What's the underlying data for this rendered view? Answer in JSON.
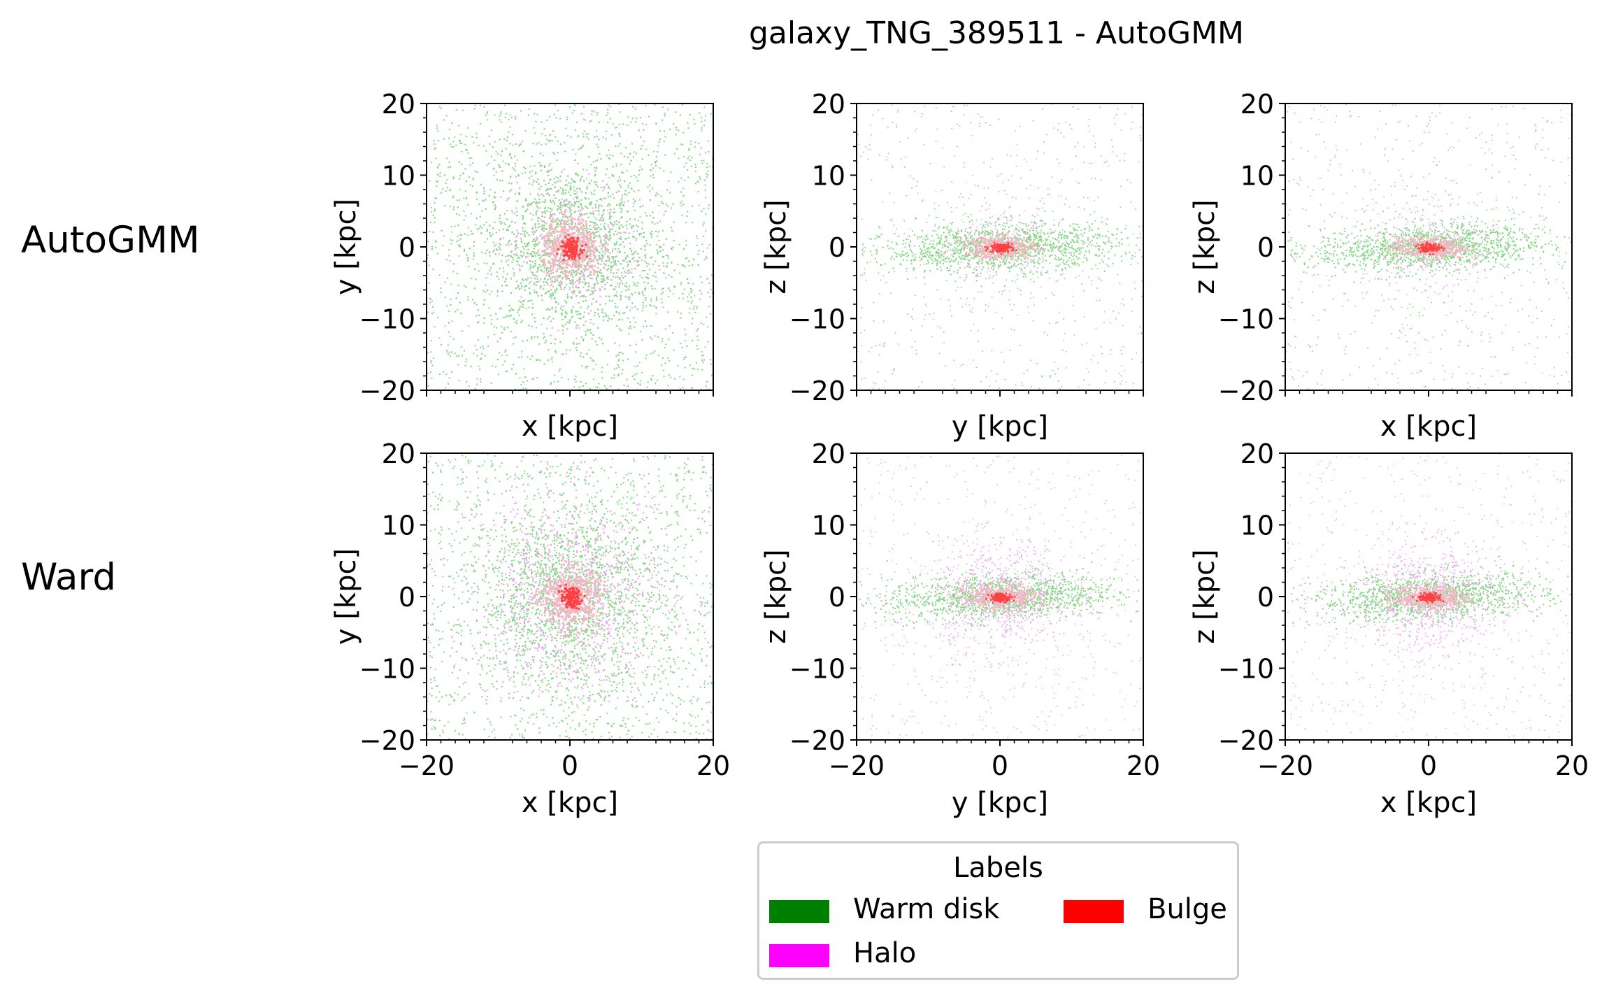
{
  "title": "galaxy_TNG_389511 - AutoGMM",
  "row_labels": [
    "AutoGMM",
    "Ward"
  ],
  "legend": {
    "title": "Labels",
    "items": [
      {
        "label": "Warm disk",
        "color": "#008000"
      },
      {
        "label": "Bulge",
        "color": "#ff0000"
      },
      {
        "label": "Halo",
        "color": "#ff00ff"
      }
    ]
  },
  "chart_data": [
    {
      "type": "scatter",
      "method": "AutoGMM",
      "projection": "x-y",
      "xlabel": "x [kpc]",
      "ylabel": "y [kpc]",
      "xlim": [
        -20,
        20
      ],
      "ylim": [
        -20,
        20
      ],
      "xticks": [
        "−20",
        "0",
        "20"
      ],
      "yticks": [
        "20",
        "10",
        "0",
        "−10",
        "−20"
      ],
      "show_xtick_labels": false,
      "series": [
        {
          "name": "Warm disk",
          "color": "#7fd87f"
        },
        {
          "name": "Halo",
          "color": "#f2a6f2"
        },
        {
          "name": "Bulge",
          "color": "#ff4040"
        }
      ]
    },
    {
      "type": "scatter",
      "method": "AutoGMM",
      "projection": "y-z",
      "xlabel": "y [kpc]",
      "ylabel": "z [kpc]",
      "xlim": [
        -20,
        20
      ],
      "ylim": [
        -20,
        20
      ],
      "xticks": [
        "−20",
        "0",
        "20"
      ],
      "yticks": [
        "20",
        "10",
        "0",
        "−10",
        "−20"
      ],
      "show_xtick_labels": false,
      "series": [
        {
          "name": "Warm disk",
          "color": "#7fd87f"
        },
        {
          "name": "Halo",
          "color": "#f2a6f2"
        },
        {
          "name": "Bulge",
          "color": "#ff4040"
        }
      ]
    },
    {
      "type": "scatter",
      "method": "AutoGMM",
      "projection": "x-z",
      "xlabel": "x [kpc]",
      "ylabel": "z [kpc]",
      "xlim": [
        -20,
        20
      ],
      "ylim": [
        -20,
        20
      ],
      "xticks": [
        "−20",
        "0",
        "20"
      ],
      "yticks": [
        "20",
        "10",
        "0",
        "−10",
        "−20"
      ],
      "show_xtick_labels": false,
      "series": [
        {
          "name": "Warm disk",
          "color": "#7fd87f"
        },
        {
          "name": "Halo",
          "color": "#f2a6f2"
        },
        {
          "name": "Bulge",
          "color": "#ff4040"
        }
      ]
    },
    {
      "type": "scatter",
      "method": "Ward",
      "projection": "x-y",
      "xlabel": "x [kpc]",
      "ylabel": "y [kpc]",
      "xlim": [
        -20,
        20
      ],
      "ylim": [
        -20,
        20
      ],
      "xticks": [
        "−20",
        "0",
        "20"
      ],
      "yticks": [
        "20",
        "10",
        "0",
        "−10",
        "−20"
      ],
      "show_xtick_labels": true,
      "series": [
        {
          "name": "Warm disk",
          "color": "#7fd87f"
        },
        {
          "name": "Halo",
          "color": "#f2a6f2"
        },
        {
          "name": "Bulge",
          "color": "#ff4040"
        }
      ]
    },
    {
      "type": "scatter",
      "method": "Ward",
      "projection": "y-z",
      "xlabel": "y [kpc]",
      "ylabel": "z [kpc]",
      "xlim": [
        -20,
        20
      ],
      "ylim": [
        -20,
        20
      ],
      "xticks": [
        "−20",
        "0",
        "20"
      ],
      "yticks": [
        "20",
        "10",
        "0",
        "−10",
        "−20"
      ],
      "show_xtick_labels": true,
      "series": [
        {
          "name": "Warm disk",
          "color": "#7fd87f"
        },
        {
          "name": "Halo",
          "color": "#f2a6f2"
        },
        {
          "name": "Bulge",
          "color": "#ff4040"
        }
      ]
    },
    {
      "type": "scatter",
      "method": "Ward",
      "projection": "x-z",
      "xlabel": "x [kpc]",
      "ylabel": "z [kpc]",
      "xlim": [
        -20,
        20
      ],
      "ylim": [
        -20,
        20
      ],
      "xticks": [
        "−20",
        "0",
        "20"
      ],
      "yticks": [
        "20",
        "10",
        "0",
        "−10",
        "−20"
      ],
      "show_xtick_labels": true,
      "series": [
        {
          "name": "Warm disk",
          "color": "#7fd87f"
        },
        {
          "name": "Halo",
          "color": "#f2a6f2"
        },
        {
          "name": "Bulge",
          "color": "#ff4040"
        }
      ]
    }
  ]
}
